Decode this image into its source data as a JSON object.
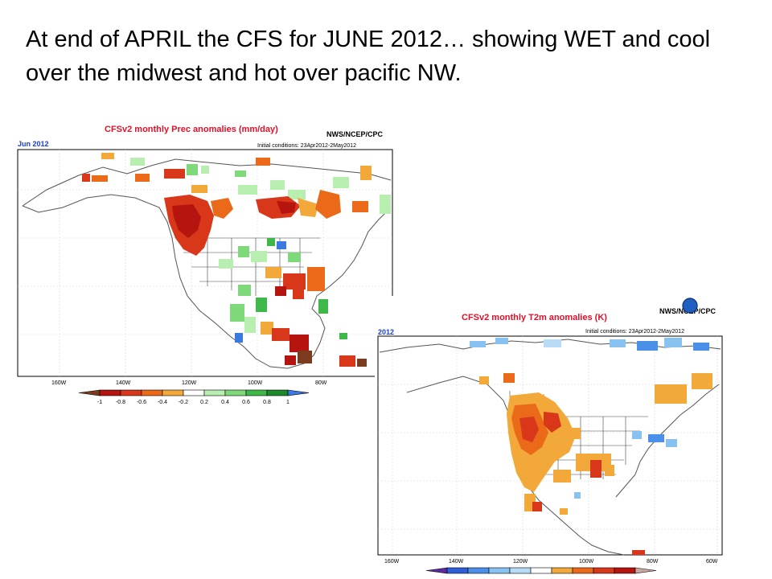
{
  "headline": "At end  of APRIL the CFS for JUNE 2012… showing WET and cool over the midwest and hot over pacific NW.",
  "prec_map": {
    "title": "CFSv2 monthly Prec anomalies (mm/day)",
    "agency": "NWS/NCEP/CPC",
    "month": "Jun 2012",
    "initial_conditions": "Initial conditions: 23Apr2012-2May2012",
    "lon_labels": [
      "160W",
      "140W",
      "120W",
      "100W",
      "80W"
    ],
    "colorbar_labels": [
      "-1",
      "-0.8",
      "-0.6",
      "-0.4",
      "-0.2",
      "0.2",
      "0.4",
      "0.6",
      "0.8",
      "1"
    ],
    "colorbar_colors": [
      "#7a3b1e",
      "#b5140f",
      "#d8371a",
      "#ea6a1a",
      "#f2a93a",
      "#ffffff",
      "#b8eeb0",
      "#7fd97a",
      "#3fb84a",
      "#1e8a2a",
      "#3a7ae0"
    ]
  },
  "t2m_map": {
    "title": "CFSv2 monthly T2m anomalies (K)",
    "agency": "NWS/NCEP/CPC",
    "month": "2012",
    "initial_conditions": "Initial conditions: 23Apr2012-2May2012",
    "lon_labels": [
      "160W",
      "140W",
      "120W",
      "100W",
      "80W",
      "60W"
    ],
    "colorbar_colors": [
      "#5a2a9e",
      "#2e5fd6",
      "#4a90e8",
      "#88c2f0",
      "#b8dcf6",
      "#ffffff",
      "#f2a93a",
      "#ea6a1a",
      "#d8371a",
      "#b5140f",
      "#caa8a0"
    ]
  }
}
